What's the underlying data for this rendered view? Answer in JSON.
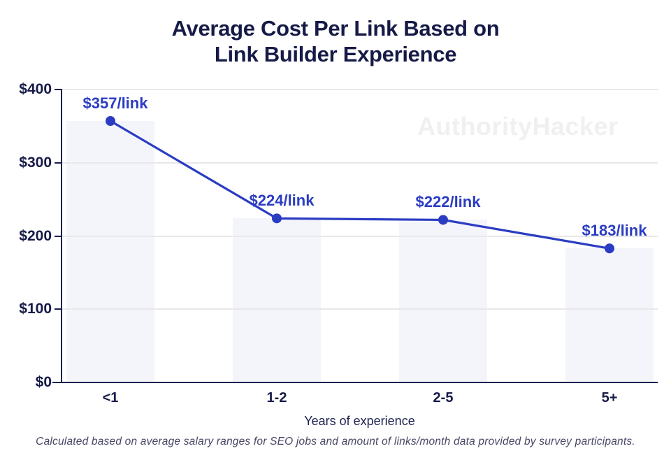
{
  "title": {
    "line1": "Average Cost Per Link Based on",
    "line2": "Link Builder Experience"
  },
  "watermark": "AuthorityHacker",
  "chart_data": {
    "type": "line",
    "background_bars": true,
    "title": "Average Cost Per Link Based on Link Builder Experience",
    "categories": [
      "<1",
      "1-2",
      "2-5",
      "5+"
    ],
    "values": [
      357,
      224,
      222,
      183
    ],
    "point_labels": [
      "$357/link",
      "$224/link",
      "$222/link",
      "$183/link"
    ],
    "xlabel": "Years of experience",
    "ylabel": "",
    "ylim": [
      0,
      400
    ],
    "yticks": [
      "$0",
      "$100",
      "$200",
      "$300",
      "$400"
    ],
    "grid": true,
    "legend": false
  },
  "footer": {
    "note": "Calculated based on average salary ranges for SEO jobs and amount of links/month data provided by survey participants."
  },
  "colors": {
    "accent_blue": "#2b3cc3",
    "navy_text": "#161a47",
    "axis_line": "#1b1f4e",
    "bar_fill": "#f4f5fb",
    "gridline": "#e8e8eb",
    "watermark": "#f0f0f1",
    "footer_text": "#474765"
  }
}
